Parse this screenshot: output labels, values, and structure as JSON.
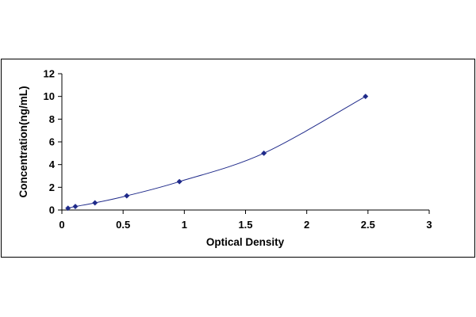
{
  "chart_data": {
    "type": "scatter",
    "title": "",
    "xlabel": "Optical Density",
    "ylabel": "Concentration(ng/mL)",
    "xlim": [
      0,
      3
    ],
    "ylim": [
      0,
      12
    ],
    "x_ticks": [
      "0",
      "0.5",
      "1",
      "1.5",
      "2",
      "2.5",
      "3"
    ],
    "y_ticks": [
      "0",
      "2",
      "4",
      "6",
      "8",
      "10",
      "12"
    ],
    "grid": false,
    "legend": "none",
    "series": [
      {
        "marker": "diamond",
        "line": "smooth",
        "color": "#1f2a8a",
        "x": [
          0.05,
          0.11,
          0.27,
          0.53,
          0.96,
          1.65,
          2.48
        ],
        "y": [
          0.16,
          0.31,
          0.63,
          1.25,
          2.5,
          5.0,
          10.0
        ]
      }
    ]
  }
}
